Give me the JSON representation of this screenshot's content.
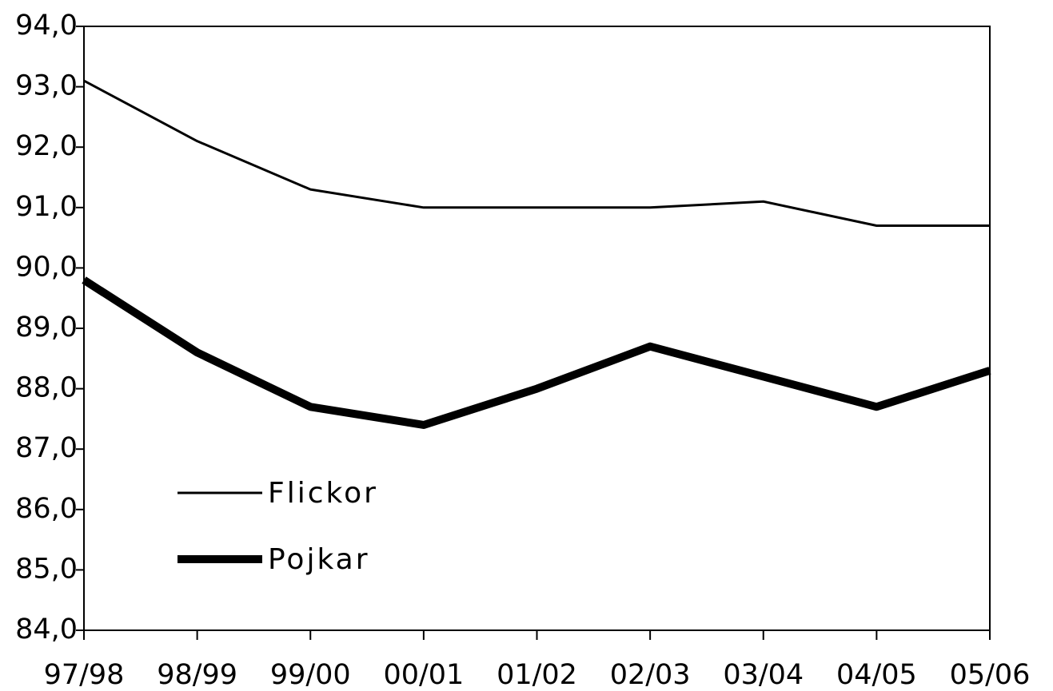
{
  "chart_data": {
    "type": "line",
    "categories": [
      "97/98",
      "98/99",
      "99/00",
      "00/01",
      "01/02",
      "02/03",
      "03/04",
      "04/05",
      "05/06"
    ],
    "series": [
      {
        "name": "Flickor",
        "color": "#000000",
        "values": [
          93.1,
          92.1,
          91.3,
          91.0,
          91.0,
          91.0,
          91.1,
          90.7,
          90.7
        ]
      },
      {
        "name": "Pojkar",
        "color": "#000000",
        "values": [
          89.8,
          88.6,
          87.7,
          87.4,
          88.0,
          88.7,
          88.2,
          87.7,
          88.3
        ]
      }
    ],
    "ylim": [
      84,
      94
    ],
    "yticks": [
      {
        "value": 84,
        "label": "84,0"
      },
      {
        "value": 85,
        "label": "85,0"
      },
      {
        "value": 86,
        "label": "86,0"
      },
      {
        "value": 87,
        "label": "87,0"
      },
      {
        "value": 88,
        "label": "88,0"
      },
      {
        "value": 89,
        "label": "89,0"
      },
      {
        "value": 90,
        "label": "90,0"
      },
      {
        "value": 91,
        "label": "91,0"
      },
      {
        "value": 92,
        "label": "92,0"
      },
      {
        "value": 93,
        "label": "93,0"
      },
      {
        "value": 94,
        "label": "94,0"
      }
    ],
    "grid": false,
    "legend": "lower left"
  }
}
